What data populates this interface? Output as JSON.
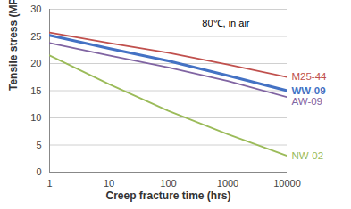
{
  "chart_data": {
    "type": "line",
    "annotation": "80℃, in air",
    "x_label": "Creep fracture time (hrs)",
    "y_label": "Tensile stress (MPa)",
    "log": "x",
    "grid": true,
    "x": [
      1,
      10,
      100,
      1000,
      10000
    ],
    "series": [
      {
        "name": "M25-44",
        "color": "#c0504d",
        "line_style": "solid",
        "values": [
          25.7,
          23.8,
          22.0,
          19.8,
          17.5
        ]
      },
      {
        "name": "WW-09",
        "color": "#4472c4",
        "line_style": "thick",
        "values": [
          25.2,
          22.8,
          20.5,
          17.8,
          15.0
        ]
      },
      {
        "name": "AW-09",
        "color": "#8064a2",
        "line_style": "solid",
        "values": [
          23.8,
          21.5,
          19.3,
          16.8,
          13.8
        ]
      },
      {
        "name": "NW-02",
        "color": "#9bbb59",
        "line_style": "solid",
        "values": [
          21.5,
          16.2,
          11.3,
          7.0,
          3.0
        ]
      }
    ],
    "xlim": [
      1,
      10000
    ],
    "xticks": [
      1,
      10,
      100,
      1000,
      10000
    ],
    "ylim": [
      0,
      30
    ],
    "yticks": [
      0,
      5,
      10,
      15,
      20,
      25,
      30
    ]
  }
}
